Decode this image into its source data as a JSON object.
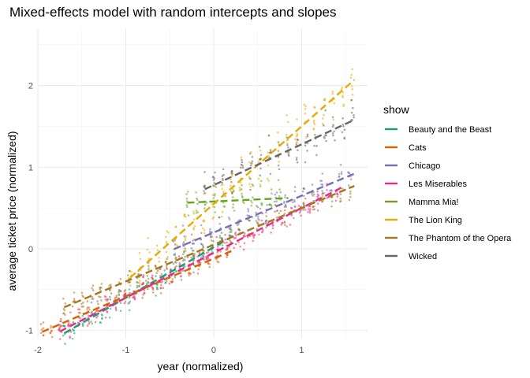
{
  "chart_data": {
    "type": "scatter",
    "title": "Mixed-effects model with random intercepts and slopes",
    "xlabel": "year (normalized)",
    "ylabel": "average ticket price (normalized)",
    "xlim": [
      -2.0,
      1.75
    ],
    "ylim": [
      -1.1,
      2.7
    ],
    "x_ticks": [
      -2,
      -1,
      0,
      1
    ],
    "x_tick_labels": [
      "-2",
      "-1",
      "0",
      "1"
    ],
    "y_ticks": [
      -1,
      0,
      1,
      2
    ],
    "y_tick_labels": [
      "-1",
      "0",
      "1",
      "2"
    ],
    "grid": true,
    "legend": {
      "title": "show",
      "position": "right"
    },
    "series": [
      {
        "name": "Beauty and the Beast",
        "color": "#1b9e77",
        "x_range": [
          -1.7,
          0.25
        ],
        "intercept": 0.02,
        "slope": 0.62,
        "spread": 0.16
      },
      {
        "name": "Cats",
        "color": "#d95f02",
        "x_range": [
          -1.95,
          0.2
        ],
        "intercept": -0.12,
        "slope": 0.46,
        "spread": 0.13
      },
      {
        "name": "Chicago",
        "color": "#7570b3",
        "x_range": [
          -0.45,
          1.6
        ],
        "intercept": 0.2,
        "slope": 0.45,
        "spread": 0.18
      },
      {
        "name": "Les Miserables",
        "color": "#e7298a",
        "x_range": [
          -1.75,
          1.45
        ],
        "intercept": -0.05,
        "slope": 0.55,
        "spread": 0.14
      },
      {
        "name": "Mamma Mia!",
        "color": "#66a61e",
        "x_range": [
          -0.3,
          0.85
        ],
        "intercept": 0.58,
        "slope": 0.05,
        "spread": 0.18
      },
      {
        "name": "The Lion King",
        "color": "#e6ab02",
        "x_range": [
          -0.95,
          1.6
        ],
        "intercept": 0.55,
        "slope": 0.95,
        "spread": 0.26
      },
      {
        "name": "The Phantom of the Opera",
        "color": "#a6761d",
        "x_range": [
          -1.7,
          1.6
        ],
        "intercept": 0.05,
        "slope": 0.45,
        "spread": 0.15
      },
      {
        "name": "Wicked",
        "color": "#666666",
        "x_range": [
          -0.1,
          1.6
        ],
        "intercept": 0.78,
        "slope": 0.5,
        "spread": 0.2
      }
    ]
  }
}
